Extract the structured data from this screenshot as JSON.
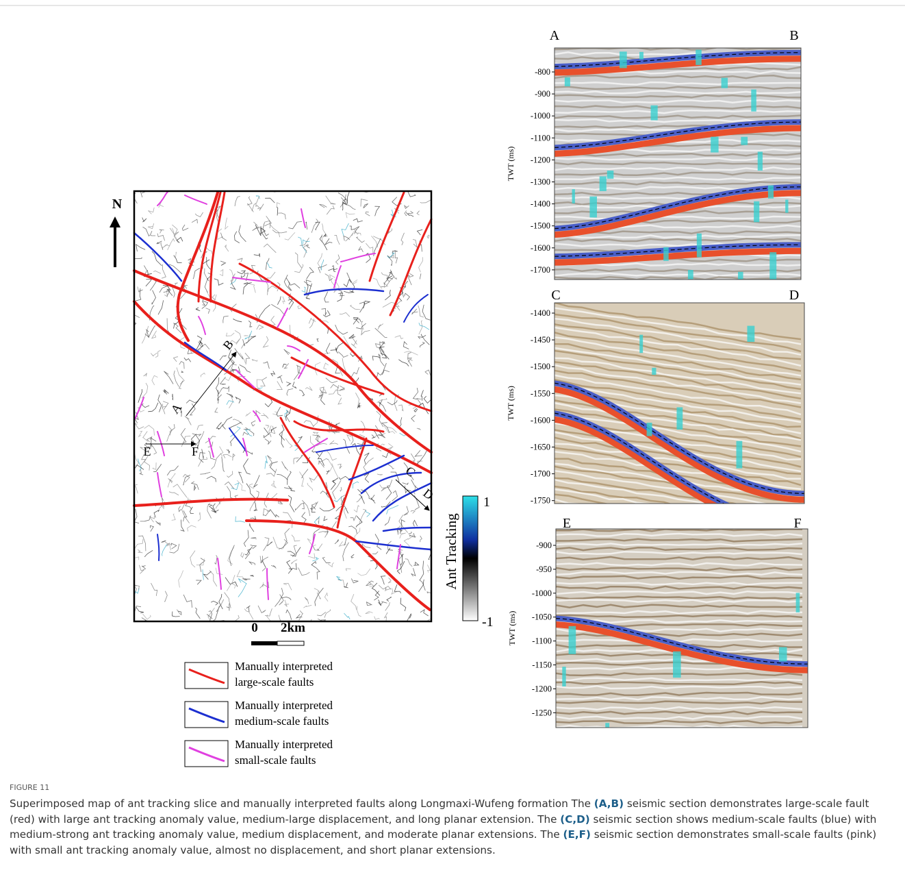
{
  "figure": {
    "label": "FIGURE 11",
    "caption": [
      "Superimposed map of ant tracking slice and manually interpreted faults along Longmaxi-Wufeng formation The ",
      "(A,B)",
      " seismic section demonstrates large-scale fault (red) with large ant tracking anomaly value, medium-large displacement, and long planar extension. The ",
      "(C,D)",
      " seismic section shows medium-scale faults (blue) with medium-strong ant tracking anomaly value, medium displacement, and moderate planar extensions. The ",
      "(E,F)",
      " seismic section demonstrates small-scale faults (pink) with small ant tracking anomaly value, almost no displacement, and short planar extensions."
    ]
  },
  "map": {
    "north": "N",
    "section_labels": [
      "A",
      "B",
      "C",
      "D",
      "E",
      "F"
    ],
    "scale": {
      "start": "0",
      "end": "2km"
    },
    "colorbar": {
      "title": "Ant Tracking",
      "max": "1",
      "min": "-1"
    }
  },
  "legend": [
    {
      "line1": "Manually interpreted",
      "line2": "large-scale faults",
      "color": "#e8201c"
    },
    {
      "line1": "Manually interpreted",
      "line2": "medium-scale faults",
      "color": "#1c2fd0"
    },
    {
      "line1": "Manually interpreted",
      "line2": "small-scale faults",
      "color": "#e040e0"
    }
  ],
  "sections": [
    {
      "left": "A",
      "right": "B",
      "axis_label": "TWT (ms)",
      "ticks": [
        "-800",
        "-900",
        "-1000",
        "-1100",
        "-1200",
        "-1300",
        "-1400",
        "-1500",
        "-1600",
        "-1700"
      ]
    },
    {
      "left": "C",
      "right": "D",
      "axis_label": "TWT (ms)",
      "ticks": [
        "-1400",
        "-1450",
        "-1500",
        "-1550",
        "-1600",
        "-1650",
        "-1700",
        "-1750"
      ]
    },
    {
      "left": "E",
      "right": "F",
      "axis_label": "TWT (ms)",
      "ticks": [
        "-900",
        "-950",
        "-1000",
        "-1050",
        "-1100",
        "-1150",
        "-1200",
        "-1250"
      ]
    }
  ]
}
